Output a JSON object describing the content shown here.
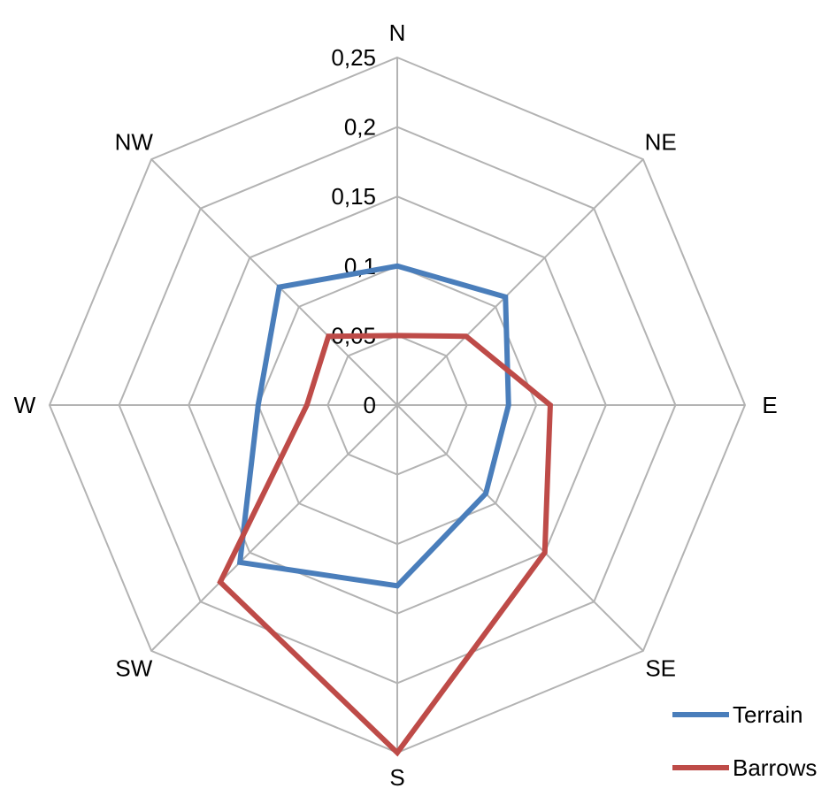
{
  "chart_data": {
    "type": "radar",
    "title": "",
    "categories": [
      "N",
      "NE",
      "E",
      "SE",
      "S",
      "SW",
      "W",
      "NW"
    ],
    "ticks": [
      "0",
      "0,05",
      "0,1",
      "0,15",
      "0,2",
      "0,25"
    ],
    "tick_values": [
      0,
      0.05,
      0.1,
      0.15,
      0.2,
      0.25
    ],
    "rlim": [
      0,
      0.25
    ],
    "grid": true,
    "legend_position": "bottom-right",
    "series": [
      {
        "name": "Terrain",
        "color": "#4a7ebb",
        "values": [
          0.1,
          0.11,
          0.08,
          0.09,
          0.13,
          0.16,
          0.1,
          0.12
        ]
      },
      {
        "name": "Barrows",
        "color": "#be4b48",
        "values": [
          0.05,
          0.07,
          0.11,
          0.15,
          0.25,
          0.18,
          0.065,
          0.07
        ]
      }
    ]
  }
}
